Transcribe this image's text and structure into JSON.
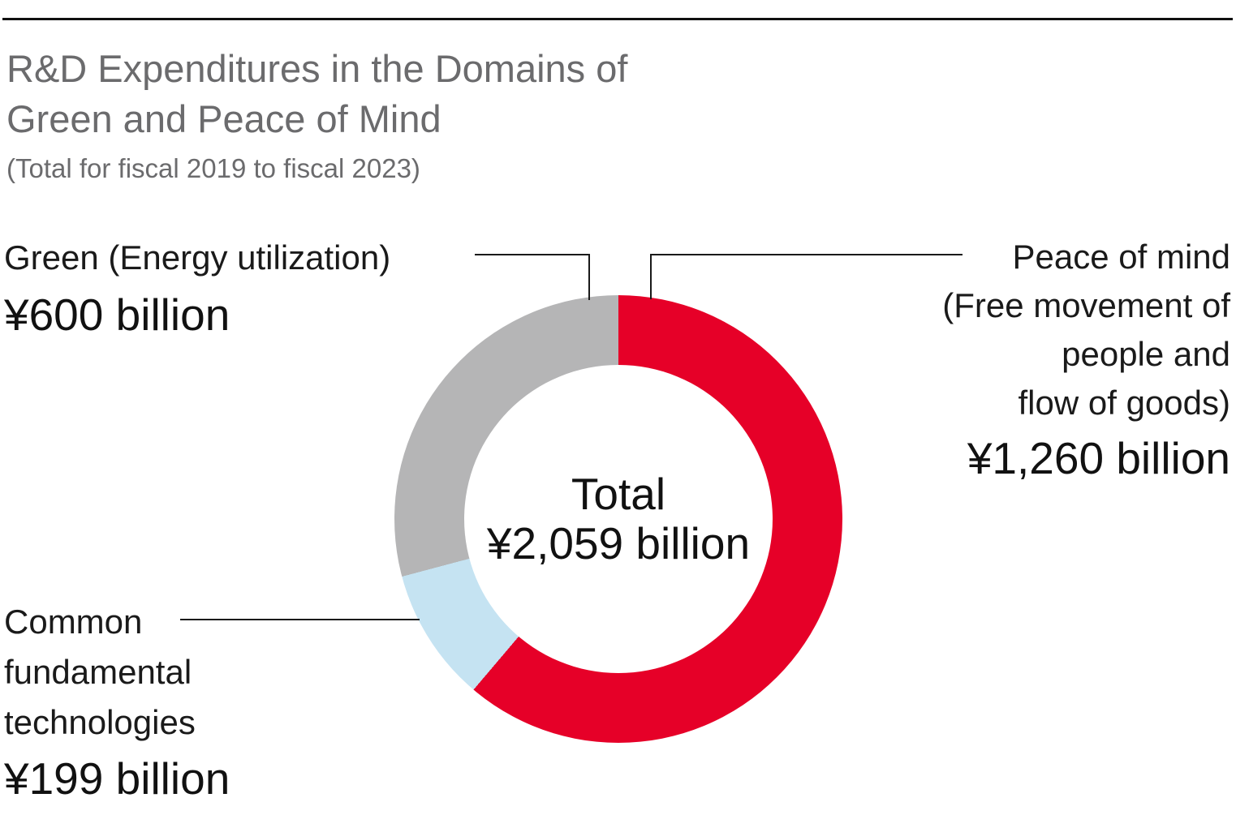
{
  "header": {
    "title_line1": "R&D Expenditures in the Domains of",
    "title_line2": "Green and Peace of Mind",
    "subtitle": "(Total for fiscal 2019 to fiscal 2023)"
  },
  "labels": {
    "green": {
      "name": "Green (Energy utilization)",
      "value": "¥600 billion"
    },
    "peace": {
      "line1": "Peace of mind",
      "line2": "(Free movement of",
      "line3": "people and",
      "line4": "flow of goods)",
      "value": "¥1,260 billion"
    },
    "common": {
      "line1": "Common",
      "line2": "fundamental",
      "line3": "technologies",
      "value": "¥199 billion"
    },
    "center": {
      "label": "Total",
      "value": "¥2,059 billion"
    }
  },
  "chart_data": {
    "type": "pie",
    "donut": true,
    "title": "R&D Expenditures in the Domains of Green and Peace of Mind",
    "subtitle": "(Total for fiscal 2019 to fiscal 2023)",
    "unit": "billion yen",
    "start_angle_deg": 0,
    "direction": "clockwise",
    "segments": [
      {
        "label": "Peace of mind (Free movement of people and flow of goods)",
        "value": 1260,
        "display_value": "¥1,260 billion",
        "color": "#E60028"
      },
      {
        "label": "Common fundamental technologies",
        "value": 199,
        "display_value": "¥199 billion",
        "color": "#C5E3F2"
      },
      {
        "label": "Green (Energy utilization)",
        "value": 600,
        "display_value": "¥600 billion",
        "color": "#B5B5B6"
      }
    ],
    "total": {
      "label": "Total",
      "value": 2059,
      "display_value": "¥2,059 billion"
    }
  }
}
